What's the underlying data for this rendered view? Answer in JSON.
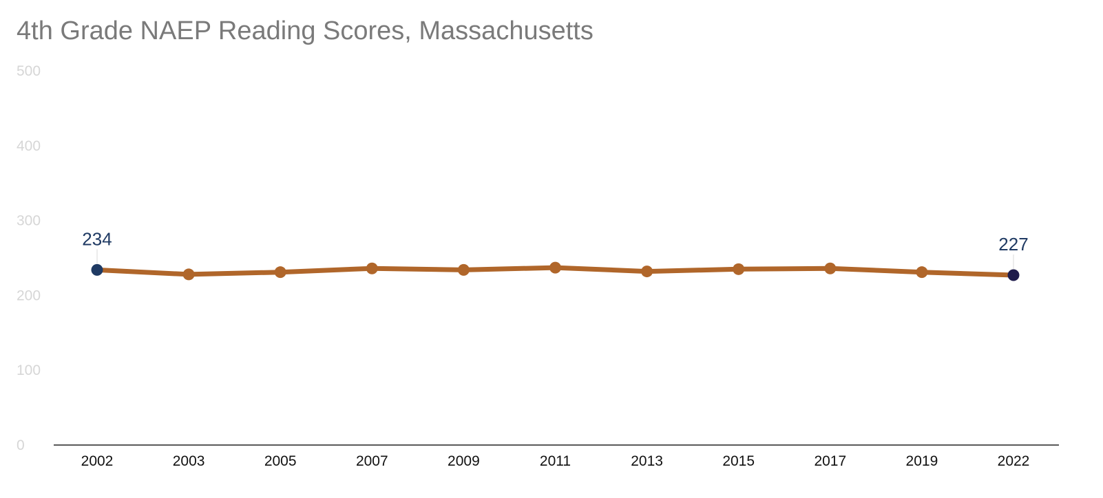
{
  "chart_data": {
    "type": "line",
    "title": "4th Grade NAEP Reading Scores, Massachusetts",
    "xlabel": "",
    "ylabel": "",
    "categories": [
      "2002",
      "2003",
      "2005",
      "2007",
      "2009",
      "2011",
      "2013",
      "2015",
      "2017",
      "2019",
      "2022"
    ],
    "series": [
      {
        "values": [
          234,
          228,
          231,
          236,
          234,
          237,
          232,
          235,
          236,
          231,
          227
        ]
      }
    ],
    "ylim": [
      0,
      500
    ],
    "yticks": [
      "0",
      "100",
      "200",
      "300",
      "400",
      "500"
    ],
    "grid": false,
    "legend": "none",
    "data_labels": [
      {
        "category": "2002",
        "text": "234"
      },
      {
        "category": "2022",
        "text": "227"
      }
    ],
    "colors": {
      "line": "#b0662a",
      "first_point": "#1f3a63",
      "last_point": "#1e1b4b",
      "label": "#1f3a63",
      "y_tick": "#d6d6d6",
      "x_tick": "#111111",
      "axis": "#222222",
      "title": "#7a7a7a"
    }
  }
}
